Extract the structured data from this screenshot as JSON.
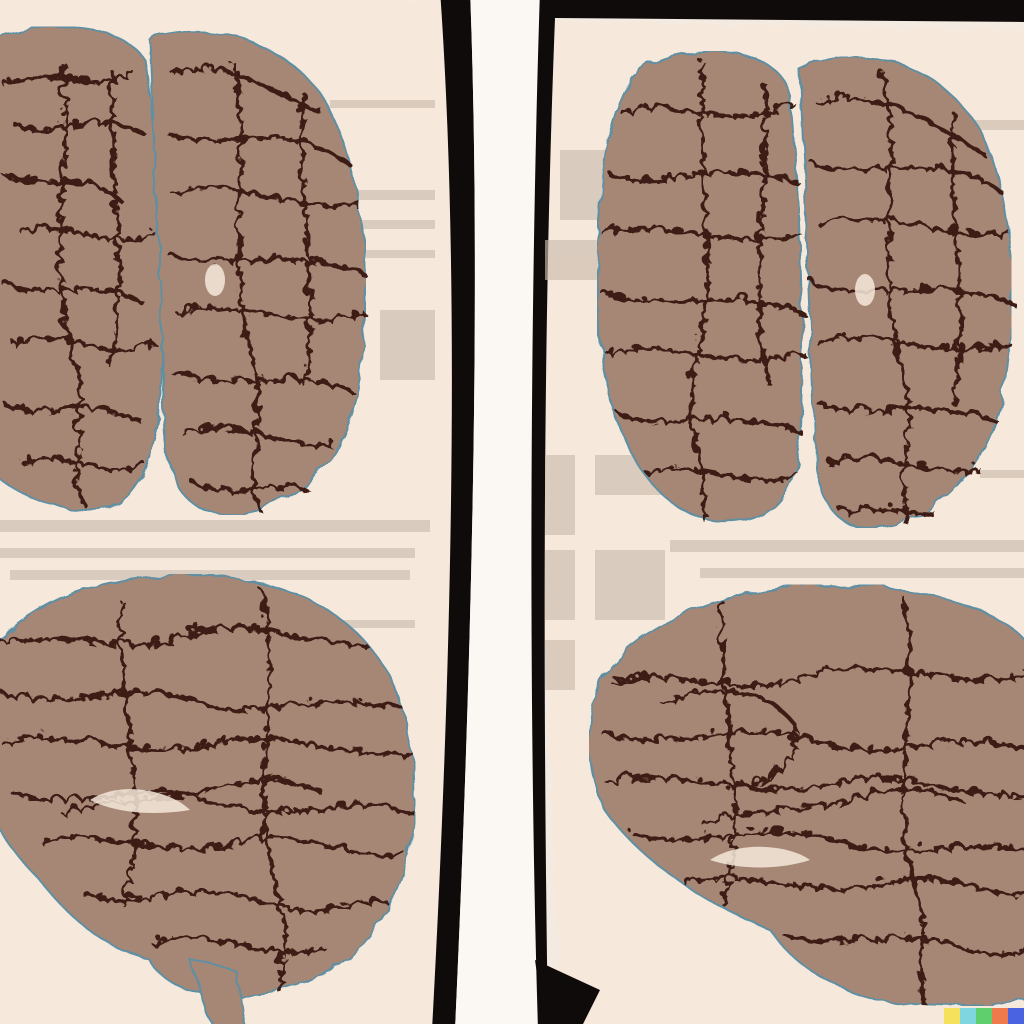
{
  "artwork": {
    "subject": "illustrated-brain-anatomy-study",
    "palette": {
      "paper": "#f6e9db",
      "paper_shadow": "#e9d8c6",
      "backdrop_stripe": "#cbbcae",
      "brain_fill": "#a68776",
      "brain_fill_light": "#b99a88",
      "sulcus_ink": "#3e1a12",
      "outline_blue": "#5f8fa3",
      "gutter_black": "#0f0b0a",
      "gutter_white": "#fbf8f4"
    },
    "panels": [
      {
        "name": "left-page",
        "views": [
          "top-view-brain",
          "side-view-brain"
        ]
      },
      {
        "name": "right-page",
        "views": [
          "top-view-brain",
          "side-view-brain"
        ]
      }
    ],
    "watermark_colors": [
      "#f5e15c",
      "#7fd6e0",
      "#5fcf6e",
      "#f07a4b",
      "#4a63e0"
    ]
  }
}
